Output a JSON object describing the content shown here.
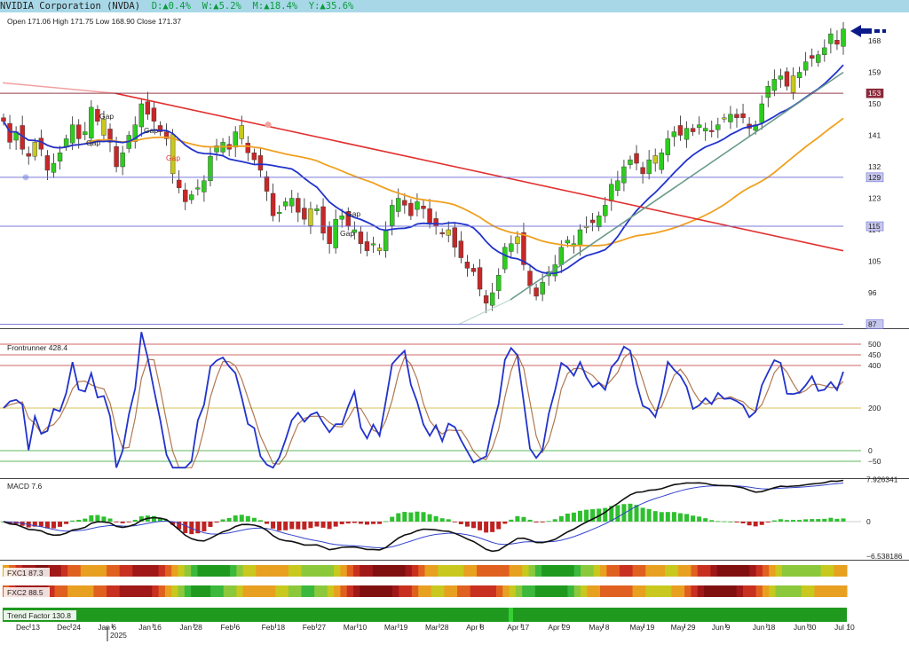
{
  "header": {
    "company": "NVIDIA Corporation (NVDA)",
    "day": "D:▲0.4%",
    "week": "W:▲5.2%",
    "month": "M:▲18.4%",
    "year": "Y:▲35.6%",
    "ohlc": "Open 171.06  High 171.75  Low 168.90  Close 171.37"
  },
  "chart_data": {
    "type": "candlestick",
    "price_axis": {
      "ticks": [
        "168",
        "159",
        "150",
        "141",
        "132",
        "123",
        "114",
        "105",
        "96"
      ],
      "tick_values": [
        168,
        159,
        150,
        141,
        132,
        123,
        114,
        105,
        96
      ],
      "range": [
        85.5,
        176
      ]
    },
    "price_levels": [
      {
        "label": "153",
        "value": 153,
        "color": "#8b2a3a"
      },
      {
        "label": "129",
        "value": 129,
        "color": "#6d6dd8"
      },
      {
        "label": "115",
        "value": 115,
        "color": "#6d6dd8"
      },
      {
        "label": "87",
        "value": 87,
        "color": "#6d6dd8"
      }
    ],
    "annotations": [
      "Gap",
      "Gap",
      "Gap",
      "Gap",
      "Gap",
      "Gap",
      "Gap"
    ],
    "closes": [
      145,
      139,
      142,
      137,
      135,
      139,
      137,
      131,
      133,
      136,
      140,
      144,
      140,
      142,
      149,
      145,
      141,
      139,
      132,
      136,
      141,
      144,
      150,
      147,
      145,
      142,
      140,
      130,
      126,
      122,
      124,
      126,
      128,
      135,
      138,
      139,
      137,
      142,
      140,
      136,
      134,
      131,
      125,
      118,
      119,
      122,
      123,
      119,
      117,
      120,
      120,
      113,
      110,
      117,
      118,
      115,
      114,
      110,
      108,
      110,
      108,
      114,
      121,
      123,
      121,
      118,
      122,
      120,
      116,
      115,
      113,
      114,
      109,
      106,
      103,
      102,
      97,
      93,
      96,
      101,
      109,
      110,
      112,
      104,
      98,
      95,
      99,
      102,
      104,
      109,
      111,
      110,
      114,
      115,
      116,
      118,
      121,
      127,
      128,
      132,
      134,
      133,
      130,
      134,
      133,
      136,
      140,
      142,
      141,
      143,
      142,
      144,
      143,
      142,
      144,
      146,
      147,
      146,
      146,
      143,
      144,
      150,
      155,
      157,
      158,
      155,
      158,
      159,
      162,
      163,
      164,
      166,
      170,
      167,
      171.37
    ],
    "ma_fast_blue": {
      "name": "",
      "approx": "declining then rising moving average"
    },
    "ma_slow_orange": {
      "name": "",
      "approx": "slowly rising moving average"
    },
    "trendlines": [
      "red downtrend",
      "green uptrend"
    ],
    "indicator_frontrunner": {
      "label": "Frontrunner 428.4",
      "value": 428.4,
      "ticks": [
        "500",
        "450",
        "400",
        "200",
        "0",
        "−50"
      ],
      "tick_values": [
        500,
        450,
        400,
        200,
        0,
        -50
      ]
    },
    "indicator_macd": {
      "label": "MACD 7.6",
      "value": 7.6,
      "ticks": [
        "7.926341",
        "0",
        "−6.538186"
      ],
      "tick_values": [
        7.926341,
        0,
        -6.538186
      ]
    },
    "fxc1": {
      "label": "FXC1 87.3"
    },
    "fxc2": {
      "label": "FXC2 88.5"
    },
    "trend_factor": {
      "label": "Trend Factor 130.8"
    },
    "x_axis": {
      "labels": [
        "Dec 13",
        "Dec 24",
        "Jan 6",
        "Jan 16",
        "Jan 28",
        "Feb 6",
        "Feb 18",
        "Feb 27",
        "Mar 10",
        "Mar 19",
        "Mar 28",
        "Apr 8",
        "Apr 17",
        "Apr 29",
        "May 8",
        "May 19",
        "May 29",
        "Jun 9",
        "Jun 18",
        "Jun 30",
        "Jul 10"
      ],
      "year_label": "2025"
    },
    "colors": {
      "up": "#2ecc1e",
      "down": "#c62828",
      "neutral": "#c8c81e",
      "fast_ma": "#2233cc",
      "slow_ma": "#f0a020",
      "downtrend": "#e23030",
      "uptrend": "#6a9a8a",
      "arrow": "#0a1a8a"
    }
  }
}
